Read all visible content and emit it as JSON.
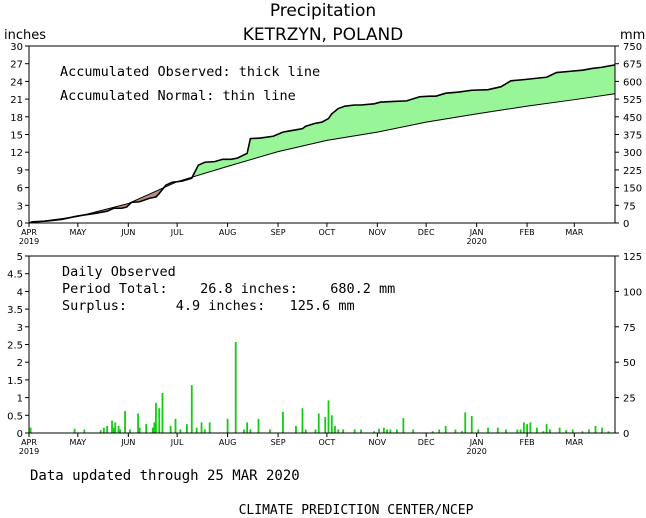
{
  "title": "Precipitation",
  "subtitle": "KETRZYN, POLAND",
  "footer_updated": "Data updated through 25 MAR 2020",
  "footer_credit": "CLIMATE PREDICTION CENTER/NCEP",
  "colors": {
    "surplus_fill": "#98f598",
    "deficit_fill": "#b48e84",
    "daily_bar": "#11cc11",
    "axis": "#000000"
  },
  "chart_data": [
    {
      "type": "area",
      "ylabel_left": "inches",
      "ylabel_right": "mm",
      "annotations": [
        "Accumulated Observed: thick line",
        "Accumulated Normal: thin line"
      ],
      "ylim": [
        0,
        30
      ],
      "yticks_left": [
        "0",
        "3",
        "6",
        "9",
        "12",
        "15",
        "18",
        "21",
        "24",
        "27",
        "30"
      ],
      "yticks_right": [
        "0",
        "75",
        "150",
        "225",
        "300",
        "375",
        "450",
        "525",
        "600",
        "675",
        "750"
      ],
      "x_range_days": [
        0,
        360
      ],
      "month_ticks": [
        {
          "label": "APR",
          "day": 0,
          "year": "2019"
        },
        {
          "label": "MAY",
          "day": 30
        },
        {
          "label": "JUN",
          "day": 61
        },
        {
          "label": "JUL",
          "day": 91
        },
        {
          "label": "AUG",
          "day": 122
        },
        {
          "label": "SEP",
          "day": 153
        },
        {
          "label": "OCT",
          "day": 183
        },
        {
          "label": "NOV",
          "day": 214
        },
        {
          "label": "DEC",
          "day": 244
        },
        {
          "label": "JAN",
          "day": 275,
          "year": "2020"
        },
        {
          "label": "FEB",
          "day": 306
        },
        {
          "label": "MAR",
          "day": 335
        }
      ],
      "series": [
        {
          "name": "Accumulated Observed",
          "points": [
            [
              0,
              0
            ],
            [
              2,
              0.2
            ],
            [
              10,
              0.3
            ],
            [
              20,
              0.6
            ],
            [
              30,
              1.2
            ],
            [
              40,
              1.6
            ],
            [
              48,
              2.0
            ],
            [
              52,
              2.5
            ],
            [
              57,
              2.5
            ],
            [
              60,
              2.7
            ],
            [
              63,
              3.5
            ],
            [
              68,
              3.6
            ],
            [
              74,
              4.2
            ],
            [
              78,
              4.4
            ],
            [
              80,
              5.0
            ],
            [
              84,
              6.4
            ],
            [
              88,
              6.9
            ],
            [
              94,
              7.1
            ],
            [
              100,
              7.6
            ],
            [
              104,
              9.8
            ],
            [
              108,
              10.3
            ],
            [
              114,
              10.4
            ],
            [
              119,
              10.8
            ],
            [
              124,
              10.8
            ],
            [
              128,
              11.0
            ],
            [
              134,
              11.8
            ],
            [
              136,
              14.3
            ],
            [
              142,
              14.4
            ],
            [
              150,
              14.7
            ],
            [
              156,
              15.4
            ],
            [
              160,
              15.6
            ],
            [
              164,
              15.8
            ],
            [
              168,
              16.0
            ],
            [
              170,
              16.4
            ],
            [
              176,
              16.9
            ],
            [
              180,
              17.1
            ],
            [
              184,
              17.7
            ],
            [
              186,
              18.5
            ],
            [
              190,
              19.4
            ],
            [
              194,
              19.8
            ],
            [
              200,
              20.0
            ],
            [
              204,
              20.0
            ],
            [
              212,
              20.2
            ],
            [
              216,
              20.5
            ],
            [
              224,
              20.6
            ],
            [
              232,
              20.7
            ],
            [
              240,
              21.4
            ],
            [
              246,
              21.5
            ],
            [
              250,
              21.5
            ],
            [
              256,
              22.0
            ],
            [
              264,
              22.2
            ],
            [
              272,
              22.5
            ],
            [
              282,
              22.6
            ],
            [
              290,
              23.1
            ],
            [
              296,
              24.1
            ],
            [
              304,
              24.3
            ],
            [
              314,
              24.6
            ],
            [
              318,
              24.7
            ],
            [
              324,
              25.5
            ],
            [
              332,
              25.7
            ],
            [
              340,
              25.9
            ],
            [
              346,
              26.2
            ],
            [
              352,
              26.4
            ],
            [
              360,
              26.8
            ]
          ]
        },
        {
          "name": "Accumulated Normal",
          "points": [
            [
              0,
              0
            ],
            [
              30,
              1.1
            ],
            [
              61,
              3.3
            ],
            [
              91,
              7.0
            ],
            [
              122,
              9.6
            ],
            [
              153,
              12.1
            ],
            [
              183,
              14.0
            ],
            [
              214,
              15.4
            ],
            [
              244,
              17.1
            ],
            [
              275,
              18.5
            ],
            [
              306,
              19.8
            ],
            [
              335,
              20.9
            ],
            [
              360,
              21.9
            ]
          ]
        }
      ]
    },
    {
      "type": "bar",
      "annotations": [
        "Daily Observed",
        "Period Total:    26.8 inches:    680.2 mm",
        "Surplus:      4.9 inches:   125.6 mm"
      ],
      "ylim": [
        0,
        5
      ],
      "yticks_left": [
        "0",
        "0.5",
        "1",
        "1.5",
        "2",
        "2.5",
        "3",
        "3.5",
        "4",
        "4.5",
        "5"
      ],
      "yticks_right": [
        "0",
        "25",
        "50",
        "75",
        "100",
        "125"
      ],
      "series": [
        {
          "name": "Daily Observed",
          "days": [
            1,
            28,
            34,
            44,
            46,
            48,
            51,
            52,
            53,
            55,
            56,
            59,
            62,
            67,
            68,
            72,
            76,
            77,
            78,
            80,
            82,
            87,
            90,
            93,
            97,
            100,
            103,
            106,
            108,
            111,
            122,
            127,
            132,
            134,
            136,
            141,
            148,
            156,
            164,
            168,
            170,
            176,
            178,
            182,
            184,
            186,
            188,
            190,
            193,
            200,
            204,
            212,
            215,
            218,
            220,
            222,
            226,
            230,
            236,
            248,
            252,
            256,
            262,
            266,
            268,
            272,
            276,
            282,
            288,
            293,
            300,
            302,
            304,
            306,
            308,
            312,
            316,
            318,
            320,
            326,
            330,
            334,
            340,
            344,
            348,
            352,
            356
          ],
          "values": [
            0.15,
            0.12,
            0.1,
            0.08,
            0.15,
            0.2,
            0.35,
            0.15,
            0.3,
            0.2,
            0.1,
            0.62,
            0.1,
            0.55,
            0.15,
            0.25,
            0.15,
            0.3,
            0.85,
            0.7,
            1.13,
            0.2,
            0.4,
            0.1,
            0.25,
            1.35,
            0.15,
            0.3,
            0.1,
            0.3,
            0.4,
            2.57,
            0.1,
            0.3,
            0.1,
            0.4,
            0.1,
            0.6,
            0.2,
            0.7,
            0.1,
            0.1,
            0.55,
            0.45,
            0.92,
            0.5,
            0.2,
            0.1,
            0.1,
            0.1,
            0.1,
            0.05,
            0.12,
            0.15,
            0.1,
            0.1,
            0.1,
            0.42,
            0.1,
            0.05,
            0.1,
            0.2,
            0.1,
            0.05,
            0.58,
            0.48,
            0.1,
            0.15,
            0.15,
            0.1,
            0.1,
            0.1,
            0.3,
            0.25,
            0.3,
            0.15,
            0.05,
            0.25,
            0.1,
            0.15,
            0.08,
            0.1,
            0.05,
            0.1,
            0.2,
            0.15,
            0.05
          ]
        }
      ]
    }
  ]
}
